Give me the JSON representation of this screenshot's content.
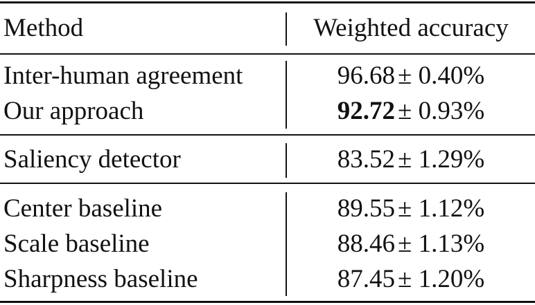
{
  "table": {
    "header": [
      "Method",
      "Weighted accuracy"
    ],
    "groups": [
      {
        "rows": [
          {
            "method": "Inter-human agreement",
            "mean": "96.68",
            "spread": "± 0.40%",
            "best": false
          },
          {
            "method": "Our approach",
            "mean": "92.72",
            "spread": "± 0.93%",
            "best": true
          }
        ]
      },
      {
        "rows": [
          {
            "method": "Saliency detector",
            "mean": "83.52",
            "spread": "± 1.29%",
            "best": false
          }
        ]
      },
      {
        "rows": [
          {
            "method": "Center baseline",
            "mean": "89.55",
            "spread": "± 1.12%",
            "best": false
          },
          {
            "method": "Scale baseline",
            "mean": "88.46",
            "spread": "± 1.13%",
            "best": false
          },
          {
            "method": "Sharpness baseline",
            "mean": "87.45",
            "spread": "± 1.20%",
            "best": false
          }
        ]
      }
    ]
  }
}
